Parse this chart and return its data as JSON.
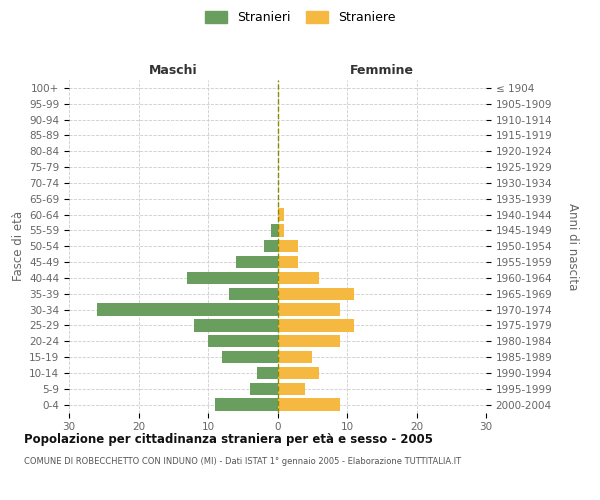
{
  "age_groups": [
    "100+",
    "95-99",
    "90-94",
    "85-89",
    "80-84",
    "75-79",
    "70-74",
    "65-69",
    "60-64",
    "55-59",
    "50-54",
    "45-49",
    "40-44",
    "35-39",
    "30-34",
    "25-29",
    "20-24",
    "15-19",
    "10-14",
    "5-9",
    "0-4"
  ],
  "birth_years": [
    "≤ 1904",
    "1905-1909",
    "1910-1914",
    "1915-1919",
    "1920-1924",
    "1925-1929",
    "1930-1934",
    "1935-1939",
    "1940-1944",
    "1945-1949",
    "1950-1954",
    "1955-1959",
    "1960-1964",
    "1965-1969",
    "1970-1974",
    "1975-1979",
    "1980-1984",
    "1985-1989",
    "1990-1994",
    "1995-1999",
    "2000-2004"
  ],
  "males": [
    0,
    0,
    0,
    0,
    0,
    0,
    0,
    0,
    0,
    1,
    2,
    6,
    13,
    7,
    26,
    12,
    10,
    8,
    3,
    4,
    9
  ],
  "females": [
    0,
    0,
    0,
    0,
    0,
    0,
    0,
    0,
    1,
    1,
    3,
    3,
    6,
    11,
    9,
    11,
    9,
    5,
    6,
    4,
    9
  ],
  "male_color": "#6a9e5e",
  "female_color": "#f5b942",
  "grid_color": "#cccccc",
  "center_line_color": "#8b8b00",
  "title": "Popolazione per cittadinanza straniera per età e sesso - 2005",
  "subtitle": "COMUNE DI ROBECCHETTO CON INDUNO (MI) - Dati ISTAT 1° gennaio 2005 - Elaborazione TUTTITALIA.IT",
  "label_maschi": "Maschi",
  "label_femmine": "Femmine",
  "ylabel_left": "Fasce di età",
  "ylabel_right": "Anni di nascita",
  "xlim": 30,
  "legend_stranieri": "Stranieri",
  "legend_straniere": "Straniere",
  "bg_color": "#ffffff",
  "text_color": "#666666",
  "title_color": "#111111",
  "subtitle_color": "#555555"
}
